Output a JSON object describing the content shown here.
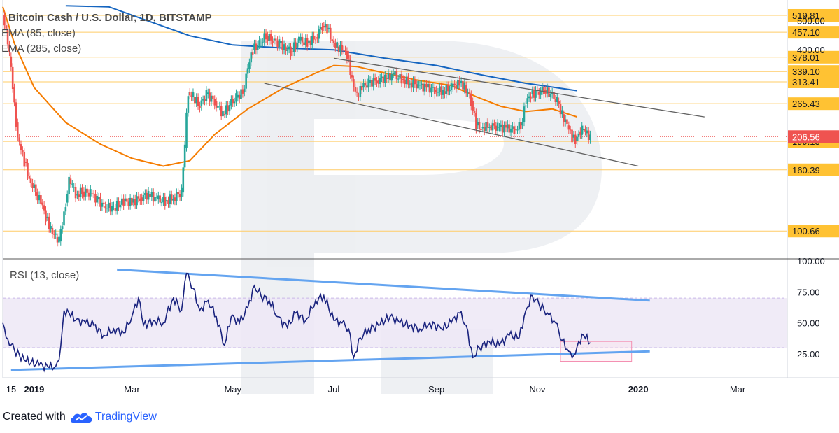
{
  "title": "Bitcoin Cash / U.S. Dollar, 1D, BITSTAMP",
  "legend": [
    "EMA (85, close)",
    "EMA (285, close)"
  ],
  "footer": {
    "created_with": "Created with",
    "brand": "TradingView"
  },
  "colors": {
    "candle_up": "#26a69a",
    "candle_down": "#ef5350",
    "ema85": "#f57c00",
    "ema285": "#1565c0",
    "level": "#ffcc66",
    "level_label": "#ffc233",
    "price_label": "#ef5350",
    "channel": "#616161",
    "rsi": "#1a237e",
    "rsi_band": "#ede7f6",
    "rsi_trend": "#64a4f0",
    "box": "#f48fb1"
  },
  "chart_data": [
    {
      "type": "line",
      "title": "Bitcoin Cash / U.S. Dollar, 1D, BITSTAMP",
      "y_scale": "log",
      "ylim": [
        85,
        560
      ],
      "x_range": [
        "2018-12-13",
        "2020-03-31"
      ],
      "y_ticks": [
        500.0,
        400.0
      ],
      "x_tick_labels": [
        {
          "date": "2018-12-15",
          "label": "15"
        },
        {
          "date": "2019-01-01",
          "label": "2019"
        },
        {
          "date": "2019-03-01",
          "label": "Mar"
        },
        {
          "date": "2019-05-01",
          "label": "May"
        },
        {
          "date": "2019-07-01",
          "label": "Jul"
        },
        {
          "date": "2019-09-01",
          "label": "Sep"
        },
        {
          "date": "2019-11-01",
          "label": "Nov"
        },
        {
          "date": "2020-01-01",
          "label": "2020"
        },
        {
          "date": "2020-03-01",
          "label": "Mar"
        }
      ],
      "levels": [
        519.81,
        457.1,
        378.01,
        339.1,
        313.41,
        265.43,
        199.13,
        160.39,
        100.66
      ],
      "last_price": 206.56,
      "series": [
        {
          "name": "EMA (85, close)",
          "points": [
            [
              "2018-12-13",
              555
            ],
            [
              "2018-12-20",
              420
            ],
            [
              "2019-01-01",
              300
            ],
            [
              "2019-01-20",
              230
            ],
            [
              "2019-02-10",
              195
            ],
            [
              "2019-03-01",
              175
            ],
            [
              "2019-03-20",
              165
            ],
            [
              "2019-04-05",
              172
            ],
            [
              "2019-04-20",
              210
            ],
            [
              "2019-05-10",
              255
            ],
            [
              "2019-06-01",
              300
            ],
            [
              "2019-06-20",
              335
            ],
            [
              "2019-07-01",
              355
            ],
            [
              "2019-07-15",
              352
            ],
            [
              "2019-08-01",
              335
            ],
            [
              "2019-08-20",
              318
            ],
            [
              "2019-09-10",
              305
            ],
            [
              "2019-09-25",
              280
            ],
            [
              "2019-10-10",
              260
            ],
            [
              "2019-10-25",
              250
            ],
            [
              "2019-11-10",
              255
            ],
            [
              "2019-11-25",
              240
            ]
          ]
        },
        {
          "name": "EMA (285, close)",
          "points": [
            [
              "2019-01-20",
              600
            ],
            [
              "2019-02-15",
              555
            ],
            [
              "2019-03-10",
              500
            ],
            [
              "2019-04-05",
              445
            ],
            [
              "2019-05-01",
              415
            ],
            [
              "2019-06-01",
              405
            ],
            [
              "2019-07-01",
              400
            ],
            [
              "2019-08-01",
              375
            ],
            [
              "2019-09-01",
              355
            ],
            [
              "2019-10-01",
              328
            ],
            [
              "2019-10-25",
              310
            ],
            [
              "2019-11-25",
              293
            ]
          ]
        },
        {
          "name": "close",
          "points": [
            [
              "2018-12-13",
              520
            ],
            [
              "2018-12-15",
              470
            ],
            [
              "2018-12-17",
              380
            ],
            [
              "2018-12-19",
              300
            ],
            [
              "2018-12-21",
              230
            ],
            [
              "2018-12-23",
              195
            ],
            [
              "2018-12-26",
              170
            ],
            [
              "2018-12-29",
              150
            ],
            [
              "2019-01-02",
              135
            ],
            [
              "2019-01-05",
              125
            ],
            [
              "2019-01-08",
              112
            ],
            [
              "2019-01-11",
              103
            ],
            [
              "2019-01-14",
              96
            ],
            [
              "2019-01-16",
              93
            ],
            [
              "2019-01-18",
              105
            ],
            [
              "2019-01-20",
              125
            ],
            [
              "2019-01-22",
              150
            ],
            [
              "2019-01-24",
              140
            ],
            [
              "2019-01-26",
              132
            ],
            [
              "2019-01-30",
              136
            ],
            [
              "2019-02-04",
              134
            ],
            [
              "2019-02-08",
              128
            ],
            [
              "2019-02-12",
              122
            ],
            [
              "2019-02-18",
              120
            ],
            [
              "2019-02-24",
              126
            ],
            [
              "2019-03-01",
              125
            ],
            [
              "2019-03-06",
              130
            ],
            [
              "2019-03-11",
              133
            ],
            [
              "2019-03-16",
              128
            ],
            [
              "2019-03-21",
              126
            ],
            [
              "2019-03-26",
              130
            ],
            [
              "2019-03-31",
              135
            ],
            [
              "2019-04-02",
              190
            ],
            [
              "2019-04-04",
              290
            ],
            [
              "2019-04-07",
              280
            ],
            [
              "2019-04-11",
              260
            ],
            [
              "2019-04-15",
              285
            ],
            [
              "2019-04-20",
              270
            ],
            [
              "2019-04-25",
              245
            ],
            [
              "2019-04-29",
              262
            ],
            [
              "2019-05-03",
              278
            ],
            [
              "2019-05-07",
              290
            ],
            [
              "2019-05-10",
              345
            ],
            [
              "2019-05-13",
              400
            ],
            [
              "2019-05-17",
              420
            ],
            [
              "2019-05-21",
              445
            ],
            [
              "2019-05-25",
              430
            ],
            [
              "2019-05-29",
              420
            ],
            [
              "2019-06-01",
              410
            ],
            [
              "2019-06-05",
              395
            ],
            [
              "2019-06-10",
              430
            ],
            [
              "2019-06-15",
              420
            ],
            [
              "2019-06-20",
              440
            ],
            [
              "2019-06-24",
              480
            ],
            [
              "2019-06-27",
              470
            ],
            [
              "2019-06-30",
              430
            ],
            [
              "2019-07-03",
              410
            ],
            [
              "2019-07-06",
              400
            ],
            [
              "2019-07-09",
              385
            ],
            [
              "2019-07-12",
              320
            ],
            [
              "2019-07-15",
              280
            ],
            [
              "2019-07-18",
              300
            ],
            [
              "2019-07-22",
              310
            ],
            [
              "2019-07-27",
              318
            ],
            [
              "2019-08-01",
              322
            ],
            [
              "2019-08-06",
              330
            ],
            [
              "2019-08-11",
              320
            ],
            [
              "2019-08-16",
              312
            ],
            [
              "2019-08-21",
              305
            ],
            [
              "2019-08-26",
              300
            ],
            [
              "2019-08-31",
              295
            ],
            [
              "2019-09-05",
              292
            ],
            [
              "2019-09-10",
              300
            ],
            [
              "2019-09-15",
              310
            ],
            [
              "2019-09-18",
              305
            ],
            [
              "2019-09-22",
              270
            ],
            [
              "2019-09-25",
              225
            ],
            [
              "2019-09-28",
              220
            ],
            [
              "2019-10-03",
              225
            ],
            [
              "2019-10-08",
              222
            ],
            [
              "2019-10-13",
              220
            ],
            [
              "2019-10-18",
              218
            ],
            [
              "2019-10-22",
              225
            ],
            [
              "2019-10-25",
              265
            ],
            [
              "2019-10-28",
              285
            ],
            [
              "2019-11-01",
              290
            ],
            [
              "2019-11-05",
              295
            ],
            [
              "2019-11-09",
              285
            ],
            [
              "2019-11-13",
              270
            ],
            [
              "2019-11-16",
              245
            ],
            [
              "2019-11-19",
              225
            ],
            [
              "2019-11-22",
              205
            ],
            [
              "2019-11-24",
              200
            ],
            [
              "2019-11-26",
              215
            ],
            [
              "2019-11-28",
              218
            ],
            [
              "2019-11-30",
              212
            ],
            [
              "2019-12-03",
              206.56
            ]
          ]
        }
      ],
      "channel_lines": [
        {
          "name": "upper",
          "points": [
            [
              "2019-07-01",
              375
            ],
            [
              "2020-02-10",
              240
            ]
          ]
        },
        {
          "name": "lower",
          "points": [
            [
              "2019-05-20",
              310
            ],
            [
              "2020-01-01",
              165
            ]
          ]
        }
      ]
    },
    {
      "type": "line",
      "title": "RSI (13, close)",
      "ylim": [
        8,
        100
      ],
      "y_ticks": [
        100.0,
        75.0,
        50.0,
        25.0
      ],
      "band": [
        30,
        70
      ],
      "series": [
        {
          "name": "RSI (13, close)",
          "points": [
            [
              "2018-12-13",
              50
            ],
            [
              "2018-12-16",
              37
            ],
            [
              "2018-12-20",
              28
            ],
            [
              "2018-12-26",
              20
            ],
            [
              "2019-01-04",
              16
            ],
            [
              "2019-01-10",
              14
            ],
            [
              "2019-01-14",
              15
            ],
            [
              "2019-01-16",
              20
            ],
            [
              "2019-01-19",
              60
            ],
            [
              "2019-01-22",
              58
            ],
            [
              "2019-01-26",
              52
            ],
            [
              "2019-02-01",
              50
            ],
            [
              "2019-02-06",
              48
            ],
            [
              "2019-02-12",
              40
            ],
            [
              "2019-02-18",
              45
            ],
            [
              "2019-02-24",
              42
            ],
            [
              "2019-03-01",
              55
            ],
            [
              "2019-03-05",
              70
            ],
            [
              "2019-03-08",
              48
            ],
            [
              "2019-03-14",
              52
            ],
            [
              "2019-03-20",
              50
            ],
            [
              "2019-03-26",
              70
            ],
            [
              "2019-03-31",
              60
            ],
            [
              "2019-04-03",
              90
            ],
            [
              "2019-04-07",
              78
            ],
            [
              "2019-04-11",
              60
            ],
            [
              "2019-04-16",
              68
            ],
            [
              "2019-04-21",
              55
            ],
            [
              "2019-04-26",
              32
            ],
            [
              "2019-04-30",
              55
            ],
            [
              "2019-05-05",
              50
            ],
            [
              "2019-05-10",
              62
            ],
            [
              "2019-05-14",
              80
            ],
            [
              "2019-05-18",
              72
            ],
            [
              "2019-05-23",
              68
            ],
            [
              "2019-05-28",
              55
            ],
            [
              "2019-06-03",
              46
            ],
            [
              "2019-06-08",
              58
            ],
            [
              "2019-06-14",
              52
            ],
            [
              "2019-06-20",
              68
            ],
            [
              "2019-06-25",
              72
            ],
            [
              "2019-07-01",
              52
            ],
            [
              "2019-07-06",
              50
            ],
            [
              "2019-07-10",
              45
            ],
            [
              "2019-07-13",
              22
            ],
            [
              "2019-07-17",
              38
            ],
            [
              "2019-07-22",
              45
            ],
            [
              "2019-07-28",
              48
            ],
            [
              "2019-08-04",
              55
            ],
            [
              "2019-08-10",
              50
            ],
            [
              "2019-08-16",
              48
            ],
            [
              "2019-08-22",
              45
            ],
            [
              "2019-08-28",
              50
            ],
            [
              "2019-09-04",
              45
            ],
            [
              "2019-09-10",
              50
            ],
            [
              "2019-09-15",
              58
            ],
            [
              "2019-09-19",
              48
            ],
            [
              "2019-09-23",
              22
            ],
            [
              "2019-09-27",
              30
            ],
            [
              "2019-10-03",
              35
            ],
            [
              "2019-10-09",
              32
            ],
            [
              "2019-10-15",
              40
            ],
            [
              "2019-10-21",
              38
            ],
            [
              "2019-10-25",
              60
            ],
            [
              "2019-10-29",
              72
            ],
            [
              "2019-11-02",
              65
            ],
            [
              "2019-11-07",
              58
            ],
            [
              "2019-11-12",
              50
            ],
            [
              "2019-11-16",
              36
            ],
            [
              "2019-11-20",
              27
            ],
            [
              "2019-11-23",
              24
            ],
            [
              "2019-11-26",
              35
            ],
            [
              "2019-11-29",
              40
            ],
            [
              "2019-12-03",
              34
            ]
          ]
        }
      ],
      "trend_lines": [
        {
          "name": "upper",
          "points": [
            [
              "2019-02-20",
              93
            ],
            [
              "2020-01-08",
              68
            ]
          ]
        },
        {
          "name": "lower",
          "points": [
            [
              "2018-12-18",
              12
            ],
            [
              "2020-01-08",
              27
            ]
          ]
        }
      ],
      "highlight_box": {
        "x": [
          "2019-11-15",
          "2019-12-28"
        ],
        "y": [
          19,
          35
        ]
      }
    }
  ]
}
